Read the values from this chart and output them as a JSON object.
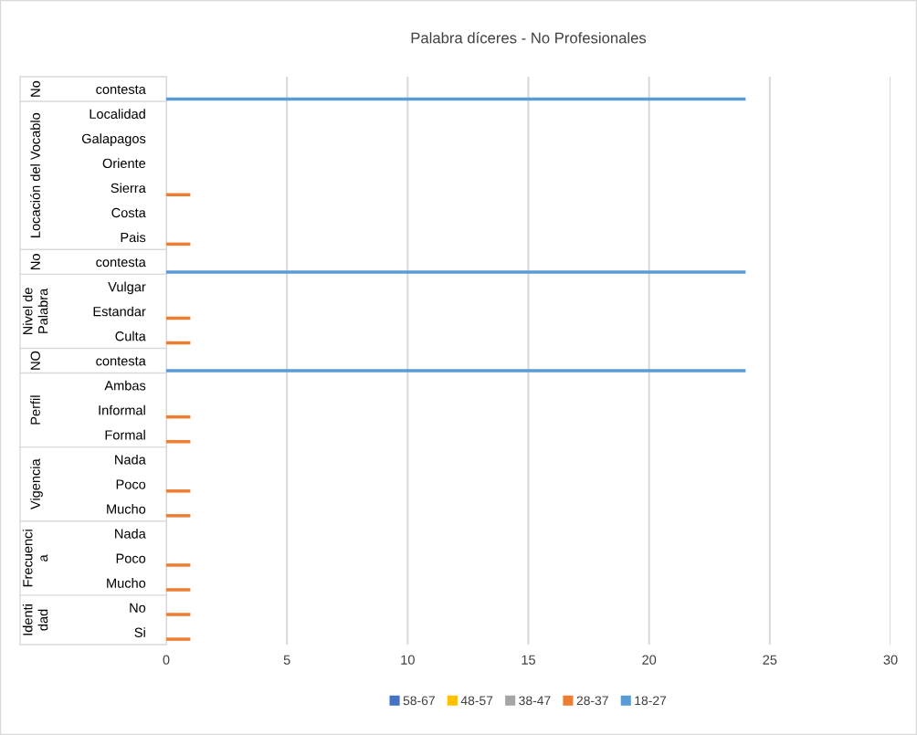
{
  "chart_data": {
    "type": "bar",
    "orientation": "horizontal",
    "title": "Palabra díceres - No Profesionales",
    "categories": [
      "contesta",
      "Localidad",
      "Galapagos",
      "Oriente",
      "Sierra",
      "Costa",
      "Pais",
      "contesta",
      "Vulgar",
      "Estandar",
      "Culta",
      "contesta",
      "Ambas",
      "Informal",
      "Formal",
      "Nada",
      "Poco",
      "Mucho",
      "Nada",
      "Poco",
      "Mucho",
      "No",
      "Si"
    ],
    "annotations": [
      "No",
      "Locación del Vocablo",
      "No",
      "Nivel de\nPalabra",
      "NO",
      "Perfil",
      "Vigencia",
      "Frecuenci\na",
      "Identi\ndad"
    ],
    "series": [
      {
        "name": "58-67",
        "color": "#4472c4",
        "values": [
          null,
          null,
          null,
          null,
          null,
          null,
          null,
          null,
          null,
          null,
          null,
          null,
          null,
          null,
          null,
          null,
          null,
          null,
          null,
          null,
          null,
          null,
          null
        ]
      },
      {
        "name": "48-57",
        "color": "#ffc000",
        "values": [
          null,
          null,
          null,
          null,
          null,
          null,
          null,
          null,
          null,
          null,
          null,
          null,
          null,
          null,
          null,
          null,
          null,
          null,
          null,
          null,
          null,
          null,
          null
        ]
      },
      {
        "name": "38-47",
        "color": "#a5a5a5",
        "values": [
          null,
          null,
          null,
          null,
          null,
          null,
          null,
          null,
          null,
          null,
          null,
          null,
          null,
          null,
          null,
          null,
          null,
          null,
          null,
          null,
          null,
          null,
          null
        ]
      },
      {
        "name": "28-37",
        "color": "#ed7d31",
        "values": [
          null,
          null,
          null,
          null,
          1,
          null,
          1,
          null,
          null,
          1,
          1,
          null,
          null,
          1,
          1,
          null,
          1,
          1,
          null,
          1,
          1,
          1,
          1
        ]
      },
      {
        "name": "18-27",
        "color": "#5b9bd5",
        "values": [
          24,
          null,
          null,
          null,
          null,
          null,
          null,
          24,
          null,
          null,
          null,
          24,
          null,
          null,
          null,
          null,
          null,
          null,
          null,
          null,
          null,
          null,
          null
        ]
      }
    ],
    "xlim": [
      0,
      30
    ],
    "xticks": [
      0,
      5,
      10,
      15,
      20,
      25,
      30
    ],
    "grid": "x",
    "legend": "bottom"
  }
}
